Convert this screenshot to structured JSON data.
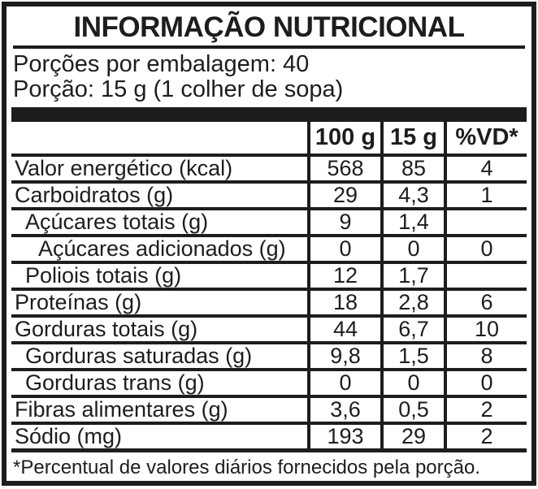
{
  "label": {
    "title": "INFORMAÇÃO NUTRICIONAL",
    "servings_line": "Porções por embalagem: 40",
    "portion_line": "Porção: 15 g (1 colher de sopa)",
    "footnote": "*Percentual de valores diários fornecidos pela porção.",
    "colors": {
      "ink": "#1d1d1b",
      "background": "#ffffff"
    }
  },
  "table": {
    "columns": [
      "",
      "100 g",
      "15 g",
      "%VD*"
    ],
    "rows": [
      {
        "name": "Valor energético (kcal)",
        "indent": 0,
        "per100g": "568",
        "per15g": "85",
        "vd": "4"
      },
      {
        "name": "Carboidratos (g)",
        "indent": 0,
        "per100g": "29",
        "per15g": "4,3",
        "vd": "1"
      },
      {
        "name": "Açúcares totais (g)",
        "indent": 1,
        "per100g": "9",
        "per15g": "1,4",
        "vd": ""
      },
      {
        "name": "Açúcares adicionados (g)",
        "indent": 2,
        "per100g": "0",
        "per15g": "0",
        "vd": "0"
      },
      {
        "name": "Poliois totais (g)",
        "indent": 1,
        "per100g": "12",
        "per15g": "1,7",
        "vd": ""
      },
      {
        "name": "Proteínas (g)",
        "indent": 0,
        "per100g": "18",
        "per15g": "2,8",
        "vd": "6"
      },
      {
        "name": "Gorduras totais (g)",
        "indent": 0,
        "per100g": "44",
        "per15g": "6,7",
        "vd": "10"
      },
      {
        "name": "Gorduras saturadas (g)",
        "indent": 1,
        "per100g": "9,8",
        "per15g": "1,5",
        "vd": "8"
      },
      {
        "name": "Gorduras trans (g)",
        "indent": 1,
        "per100g": "0",
        "per15g": "0",
        "vd": "0"
      },
      {
        "name": "Fibras alimentares (g)",
        "indent": 0,
        "per100g": "3,6",
        "per15g": "0,5",
        "vd": "2"
      },
      {
        "name": "Sódio (mg)",
        "indent": 0,
        "per100g": "193",
        "per15g": "29",
        "vd": "2"
      }
    ]
  }
}
